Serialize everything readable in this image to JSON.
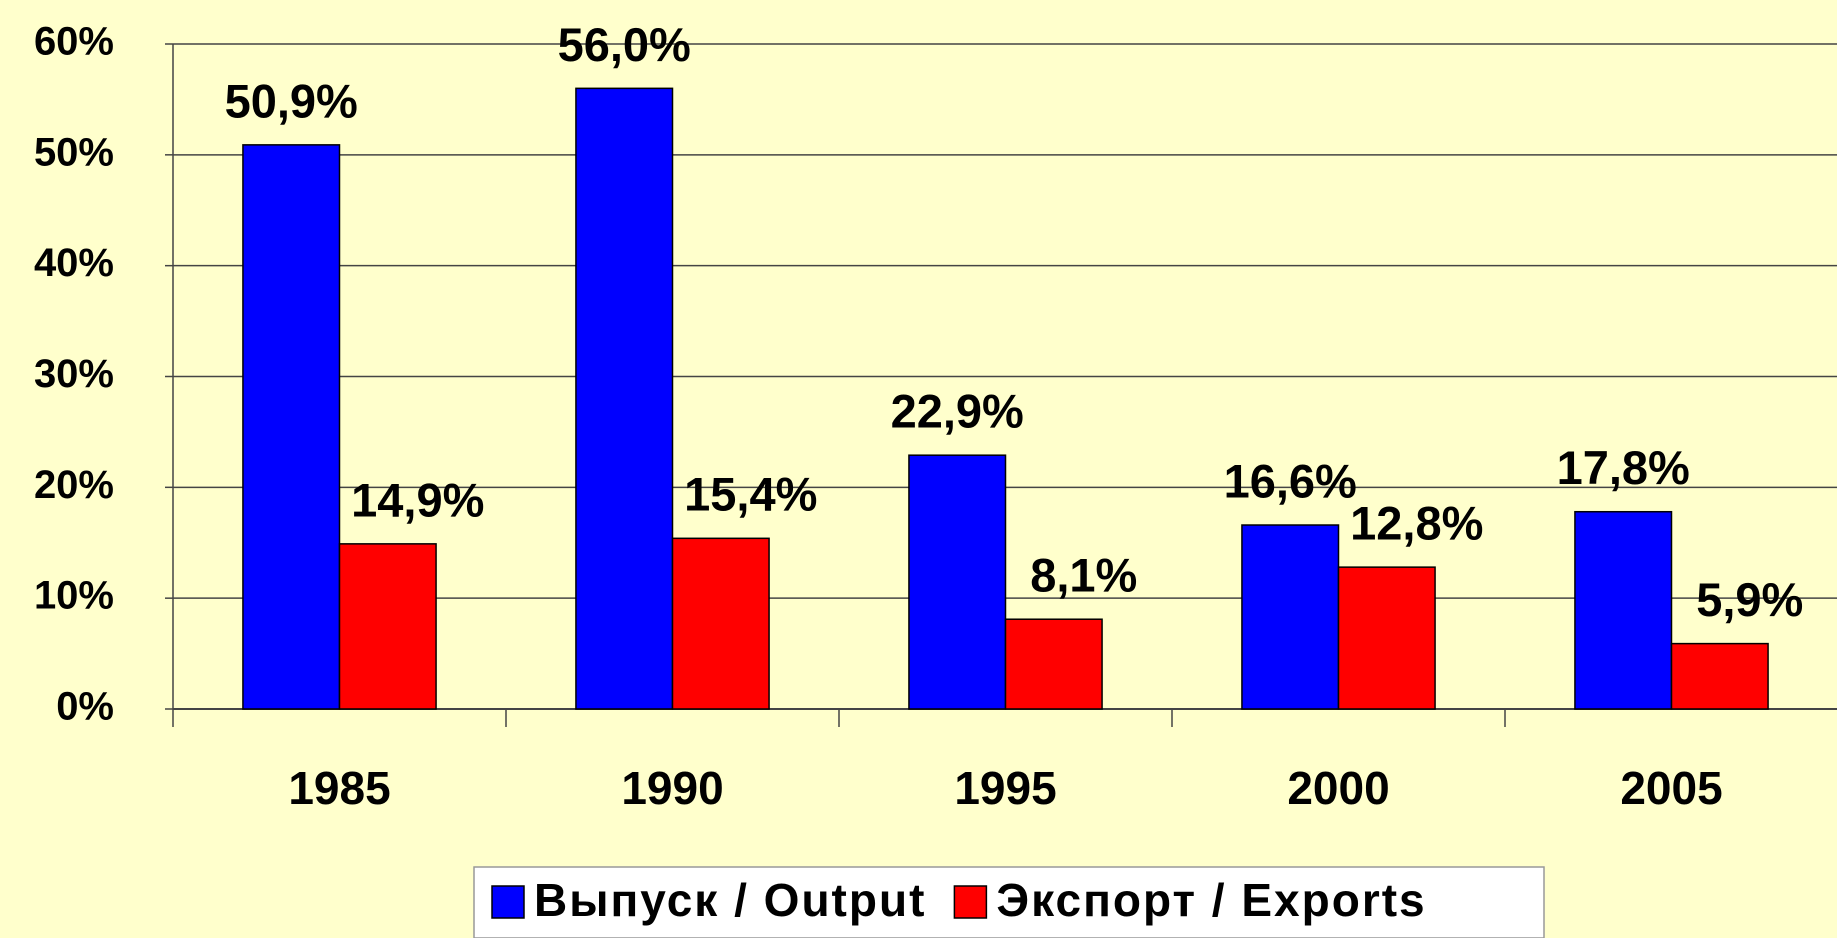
{
  "chart_data": {
    "type": "bar",
    "categories": [
      "1985",
      "1990",
      "1995",
      "2000",
      "2005"
    ],
    "series": [
      {
        "name": "Выпуск / Output",
        "color": "#0000ff",
        "values": [
          50.9,
          56.0,
          22.9,
          16.6,
          17.8
        ],
        "value_labels": [
          "50,9%",
          "56,0%",
          "22,9%",
          "16,6%",
          "17,8%"
        ]
      },
      {
        "name": "Экспорт / Exports",
        "color": "#ff0000",
        "values": [
          14.9,
          15.4,
          8.1,
          12.8,
          5.9
        ],
        "value_labels": [
          "14,9%",
          "15,4%",
          "8,1%",
          "12,8%",
          "5,9%"
        ]
      }
    ],
    "ylim": [
      0,
      60
    ],
    "yticks": [
      {
        "value": 0,
        "label": "0%"
      },
      {
        "value": 10,
        "label": "10%"
      },
      {
        "value": 20,
        "label": "20%"
      },
      {
        "value": 30,
        "label": "30%"
      },
      {
        "value": 40,
        "label": "40%"
      },
      {
        "value": 50,
        "label": "50%"
      },
      {
        "value": 60,
        "label": "60%"
      }
    ],
    "grid": true,
    "legend": "bottom"
  }
}
